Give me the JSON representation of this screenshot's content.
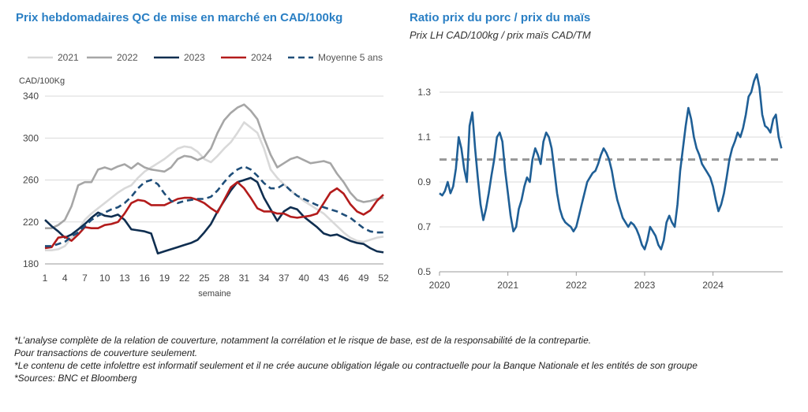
{
  "chart_data": [
    {
      "type": "line",
      "title": "Prix hebdomadaires QC de mise en marché en CAD/100kg",
      "ylabel": "CAD/100Kg",
      "xlabel": "semaine",
      "ylim": [
        180,
        340
      ],
      "yticks": [
        180,
        220,
        260,
        300,
        340
      ],
      "xticks": [
        1,
        4,
        7,
        10,
        13,
        16,
        19,
        22,
        25,
        28,
        31,
        34,
        37,
        40,
        43,
        46,
        49,
        52
      ],
      "grid": true,
      "legend_position": "top",
      "x": [
        1,
        2,
        3,
        4,
        5,
        6,
        7,
        8,
        9,
        10,
        11,
        12,
        13,
        14,
        15,
        16,
        17,
        18,
        19,
        20,
        21,
        22,
        23,
        24,
        25,
        26,
        27,
        28,
        29,
        30,
        31,
        32,
        33,
        34,
        35,
        36,
        37,
        38,
        39,
        40,
        41,
        42,
        43,
        44,
        45,
        46,
        47,
        48,
        49,
        50,
        51,
        52
      ],
      "series": [
        {
          "name": "2021",
          "color": "#d9d9d9",
          "style": "solid",
          "values": [
            193,
            193,
            194,
            197,
            205,
            212,
            222,
            228,
            233,
            238,
            243,
            248,
            252,
            255,
            262,
            268,
            272,
            276,
            280,
            285,
            290,
            292,
            291,
            287,
            280,
            277,
            283,
            290,
            296,
            305,
            315,
            310,
            305,
            290,
            270,
            262,
            256,
            250,
            245,
            240,
            236,
            232,
            228,
            222,
            216,
            210,
            205,
            202,
            201,
            203,
            205,
            206
          ]
        },
        {
          "name": "2022",
          "color": "#a6a6a6",
          "style": "solid",
          "values": [
            214,
            214,
            217,
            222,
            235,
            255,
            258,
            258,
            270,
            272,
            270,
            273,
            275,
            271,
            276,
            272,
            270,
            269,
            268,
            272,
            280,
            283,
            282,
            279,
            282,
            290,
            305,
            317,
            324,
            329,
            332,
            326,
            318,
            300,
            284,
            272,
            276,
            280,
            282,
            279,
            276,
            277,
            278,
            276,
            266,
            258,
            248,
            241,
            239,
            240,
            242,
            243
          ]
        },
        {
          "name": "2023",
          "color": "#0f2e50",
          "style": "solid",
          "values": [
            222,
            216,
            211,
            205,
            208,
            213,
            218,
            224,
            229,
            226,
            225,
            227,
            222,
            213,
            212,
            211,
            209,
            190,
            192,
            194,
            196,
            198,
            200,
            203,
            210,
            218,
            230,
            240,
            250,
            258,
            260,
            262,
            258,
            243,
            232,
            221,
            230,
            234,
            232,
            225,
            220,
            215,
            209,
            207,
            208,
            205,
            202,
            200,
            199,
            195,
            192,
            191
          ]
        },
        {
          "name": "2024",
          "color": "#b31b1b",
          "style": "solid",
          "values": [
            195,
            196,
            205,
            206,
            202,
            208,
            215,
            214,
            214,
            217,
            218,
            220,
            228,
            238,
            241,
            240,
            236,
            236,
            236,
            239,
            242,
            243,
            243,
            241,
            238,
            233,
            229,
            241,
            253,
            258,
            252,
            243,
            233,
            230,
            230,
            228,
            228,
            225,
            224,
            225,
            226,
            228,
            238,
            248,
            252,
            247,
            237,
            230,
            227,
            231,
            240,
            246
          ]
        },
        {
          "name": "Moyenne 5 ans",
          "color": "#1f4e79",
          "style": "dashed",
          "values": [
            197,
            197,
            199,
            201,
            206,
            210,
            216,
            222,
            226,
            229,
            232,
            234,
            238,
            244,
            252,
            258,
            260,
            256,
            247,
            240,
            238,
            240,
            241,
            242,
            242,
            244,
            250,
            258,
            265,
            270,
            273,
            270,
            264,
            257,
            252,
            252,
            256,
            250,
            245,
            242,
            239,
            236,
            234,
            232,
            230,
            227,
            224,
            219,
            214,
            211,
            210,
            210
          ]
        }
      ]
    },
    {
      "type": "line",
      "title": "Ratio prix du porc / prix du maïs",
      "subtitle": "Prix LH CAD/100kg / prix maïs CAD/TM",
      "ylim": [
        0.5,
        1.4
      ],
      "yticks": [
        0.5,
        0.7,
        0.9,
        1.1,
        1.3
      ],
      "xlim": [
        2020,
        2025.02
      ],
      "xticks": [
        2020,
        2021,
        2022,
        2023,
        2024
      ],
      "grid": true,
      "reference_line": {
        "value": 1.0,
        "color": "#999999",
        "style": "dashed"
      },
      "series": [
        {
          "name": "",
          "color": "#1f5f96",
          "style": "solid",
          "x": [
            2020.0,
            2020.04,
            2020.08,
            2020.12,
            2020.16,
            2020.2,
            2020.24,
            2020.28,
            2020.32,
            2020.36,
            2020.4,
            2020.44,
            2020.48,
            2020.52,
            2020.56,
            2020.6,
            2020.64,
            2020.68,
            2020.72,
            2020.76,
            2020.8,
            2020.84,
            2020.88,
            2020.92,
            2020.96,
            2021.0,
            2021.04,
            2021.08,
            2021.12,
            2021.16,
            2021.2,
            2021.24,
            2021.28,
            2021.32,
            2021.36,
            2021.4,
            2021.44,
            2021.48,
            2021.52,
            2021.56,
            2021.6,
            2021.64,
            2021.68,
            2021.72,
            2021.76,
            2021.8,
            2021.84,
            2021.88,
            2021.92,
            2021.96,
            2022.0,
            2022.04,
            2022.08,
            2022.12,
            2022.16,
            2022.2,
            2022.24,
            2022.28,
            2022.32,
            2022.36,
            2022.4,
            2022.44,
            2022.48,
            2022.52,
            2022.56,
            2022.6,
            2022.64,
            2022.68,
            2022.72,
            2022.76,
            2022.8,
            2022.84,
            2022.88,
            2022.92,
            2022.96,
            2023.0,
            2023.04,
            2023.08,
            2023.12,
            2023.16,
            2023.2,
            2023.24,
            2023.28,
            2023.32,
            2023.36,
            2023.4,
            2023.44,
            2023.48,
            2023.52,
            2023.56,
            2023.6,
            2023.64,
            2023.68,
            2023.72,
            2023.76,
            2023.8,
            2023.84,
            2023.88,
            2023.92,
            2023.96,
            2024.0,
            2024.04,
            2024.08,
            2024.12,
            2024.16,
            2024.2,
            2024.24,
            2024.28,
            2024.32,
            2024.36,
            2024.4,
            2024.44,
            2024.48,
            2024.52,
            2024.56,
            2024.6,
            2024.64,
            2024.68,
            2024.72,
            2024.76,
            2024.8,
            2024.84,
            2024.88,
            2024.92,
            2024.96,
            2025.0
          ],
          "y": [
            0.85,
            0.84,
            0.86,
            0.9,
            0.85,
            0.88,
            0.96,
            1.1,
            1.05,
            0.96,
            0.9,
            1.15,
            1.21,
            1.05,
            0.92,
            0.8,
            0.73,
            0.78,
            0.85,
            0.93,
            1.0,
            1.1,
            1.12,
            1.08,
            0.95,
            0.85,
            0.75,
            0.68,
            0.7,
            0.78,
            0.82,
            0.88,
            0.92,
            0.9,
            1.0,
            1.05,
            1.02,
            0.98,
            1.08,
            1.12,
            1.1,
            1.05,
            0.95,
            0.85,
            0.78,
            0.74,
            0.72,
            0.71,
            0.7,
            0.68,
            0.7,
            0.75,
            0.8,
            0.85,
            0.9,
            0.92,
            0.94,
            0.95,
            0.98,
            1.02,
            1.05,
            1.03,
            1.0,
            0.95,
            0.88,
            0.82,
            0.78,
            0.74,
            0.72,
            0.7,
            0.72,
            0.71,
            0.69,
            0.66,
            0.62,
            0.6,
            0.64,
            0.7,
            0.68,
            0.66,
            0.62,
            0.6,
            0.64,
            0.72,
            0.75,
            0.72,
            0.7,
            0.8,
            0.95,
            1.05,
            1.15,
            1.23,
            1.18,
            1.1,
            1.05,
            1.02,
            0.98,
            0.96,
            0.94,
            0.92,
            0.88,
            0.82,
            0.77,
            0.8,
            0.85,
            0.92,
            1.0,
            1.05,
            1.08,
            1.12,
            1.1,
            1.14,
            1.2,
            1.28,
            1.3,
            1.35,
            1.38,
            1.32,
            1.2,
            1.15,
            1.14,
            1.12,
            1.18,
            1.2,
            1.1,
            1.05
          ]
        }
      ]
    }
  ],
  "footer": {
    "line1": "*L’analyse complète de la relation de couverture, notamment la corrélation et le risque de base, est de la responsabilité de la contrepartie.",
    "line2": "Pour transactions de couverture seulement.",
    "line3": "*Le contenu de cette infolettre est informatif seulement et il ne crée aucune obligation légale ou contractuelle pour la Banque Nationale et les entités de son groupe",
    "line4": "*Sources: BNC et Bloomberg"
  }
}
